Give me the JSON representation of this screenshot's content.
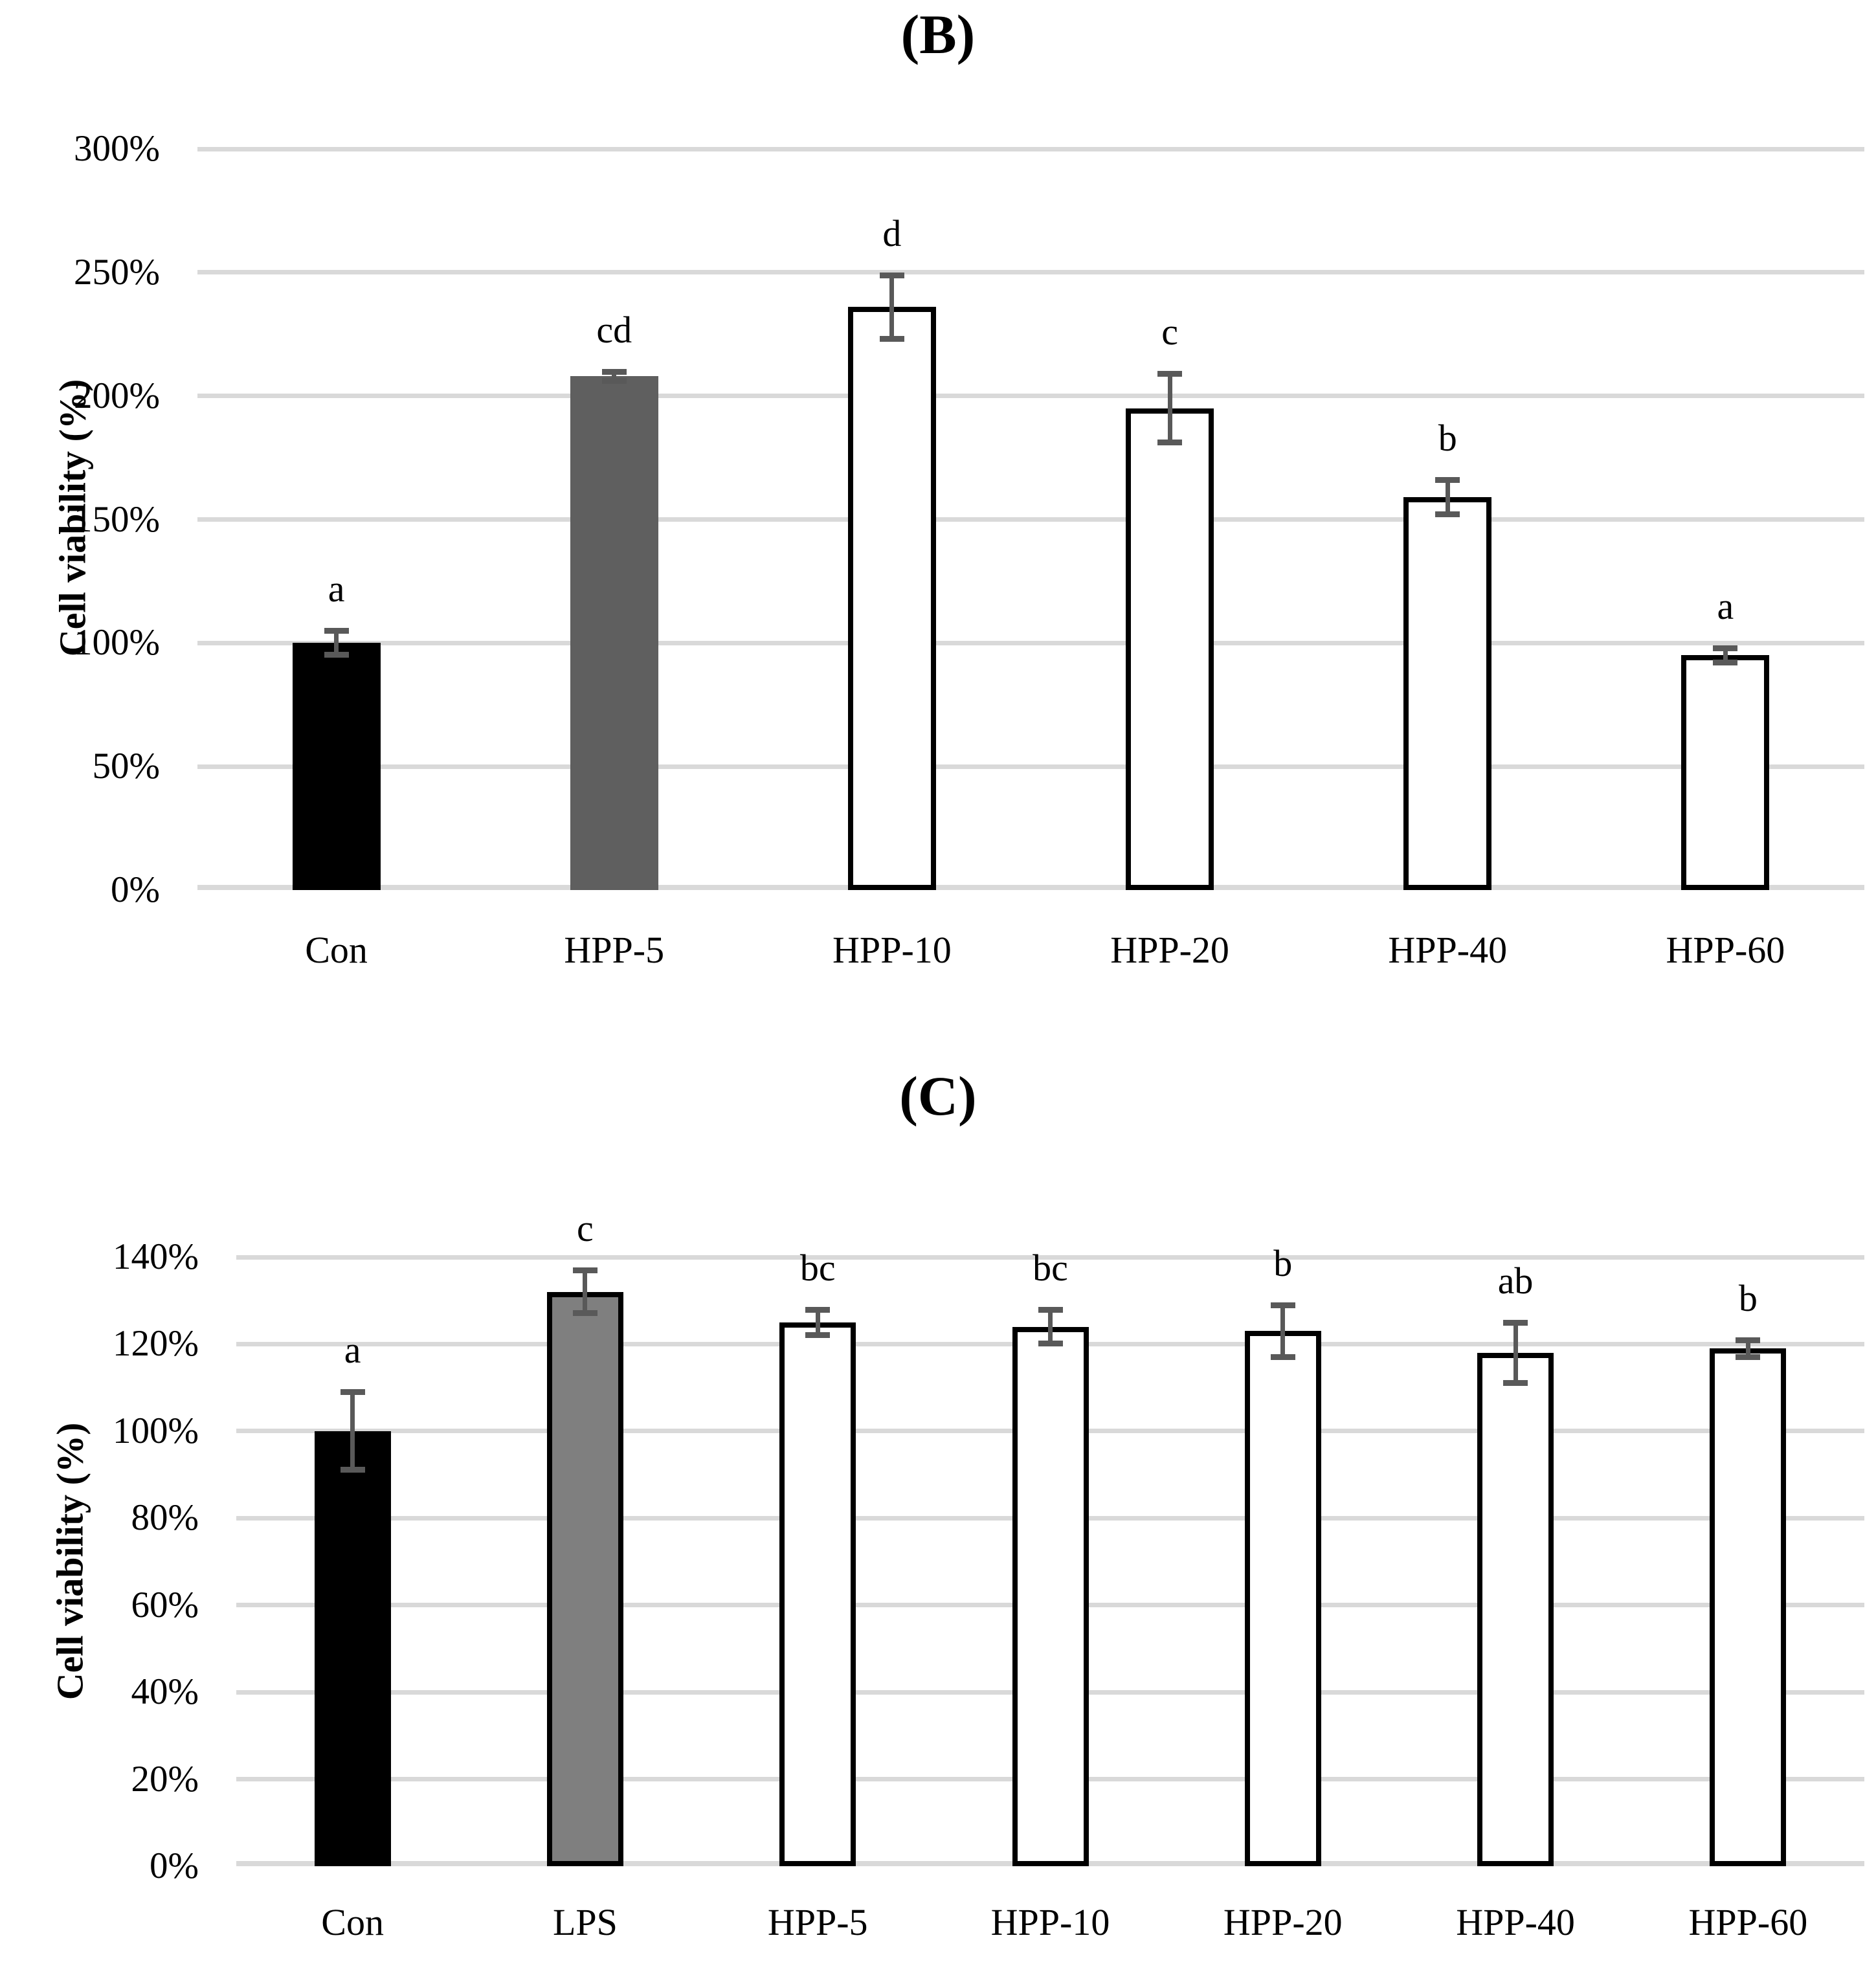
{
  "figure": {
    "background": "#ffffff"
  },
  "chart_data": [
    {
      "id": "B",
      "type": "bar",
      "title": "(B)",
      "ylabel": "Cell viability (%)",
      "xlabel": "",
      "ylim": [
        0,
        300
      ],
      "ytick_step": 50,
      "ytick_labels": [
        "0%",
        "50%",
        "100%",
        "150%",
        "200%",
        "250%",
        "300%"
      ],
      "grid": true,
      "legend": "none",
      "categories": [
        "Con",
        "HPP-5",
        "HPP-10",
        "HPP-20",
        "HPP-40",
        "HPP-60"
      ],
      "values": [
        100,
        208,
        236,
        195,
        159,
        95
      ],
      "errors": [
        5,
        2,
        13,
        14,
        7,
        3
      ],
      "sig_letters": [
        "a",
        "cd",
        "d",
        "c",
        "b",
        "a"
      ],
      "bar_styles": [
        {
          "fill": "#000000",
          "border": "none"
        },
        {
          "fill": "#5f5f5f",
          "border": "none"
        },
        {
          "fill": "#ffffff",
          "border": "#000000"
        },
        {
          "fill": "#ffffff",
          "border": "#000000"
        },
        {
          "fill": "#ffffff",
          "border": "#000000"
        },
        {
          "fill": "#ffffff",
          "border": "#000000"
        }
      ],
      "colors": {
        "gridline": "#d9d9d9",
        "axis_line": "#d9d9d9",
        "error_bar": "#595959"
      }
    },
    {
      "id": "C",
      "type": "bar",
      "title": "(C)",
      "ylabel": "Cell viability (%)",
      "xlabel": "",
      "ylim": [
        0,
        140
      ],
      "ytick_step": 20,
      "ytick_labels": [
        "0%",
        "20%",
        "40%",
        "60%",
        "80%",
        "100%",
        "120%",
        "140%"
      ],
      "grid": true,
      "legend": "none",
      "categories": [
        "Con",
        "LPS",
        "HPP-5",
        "HPP-10",
        "HPP-20",
        "HPP-40",
        "HPP-60"
      ],
      "values": [
        100,
        132,
        125,
        124,
        123,
        118,
        119
      ],
      "errors": [
        9,
        5,
        3,
        4,
        6,
        7,
        2
      ],
      "sig_letters": [
        "a",
        "c",
        "bc",
        "bc",
        "b",
        "ab",
        "b"
      ],
      "bar_styles": [
        {
          "fill": "#000000",
          "border": "none"
        },
        {
          "fill": "#7f7f7f",
          "border": "#000000"
        },
        {
          "fill": "#ffffff",
          "border": "#000000"
        },
        {
          "fill": "#ffffff",
          "border": "#000000"
        },
        {
          "fill": "#ffffff",
          "border": "#000000"
        },
        {
          "fill": "#ffffff",
          "border": "#000000"
        },
        {
          "fill": "#ffffff",
          "border": "#000000"
        }
      ],
      "colors": {
        "gridline": "#d9d9d9",
        "axis_line": "#d9d9d9",
        "error_bar": "#595959"
      }
    }
  ]
}
